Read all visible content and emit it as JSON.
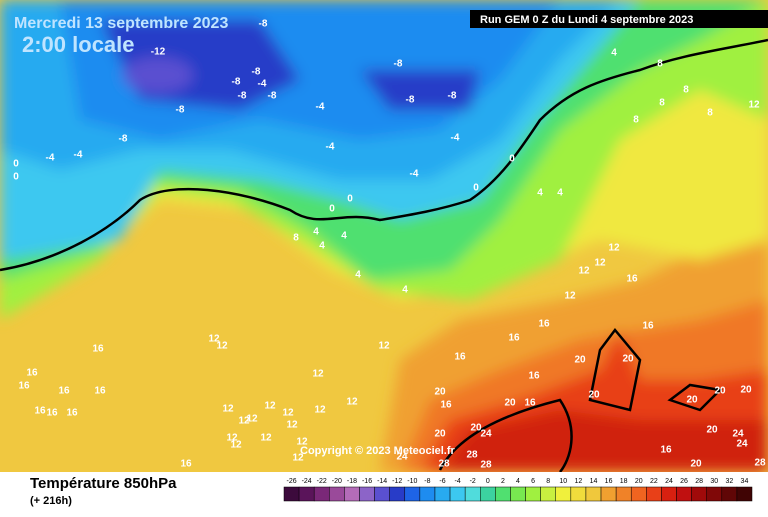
{
  "header": {
    "date": "Mercredi 13 septembre 2023",
    "time": "2:00 locale",
    "run": "Run GEM 0 Z du Lundi 4 septembre 2023"
  },
  "copyright": "Copyright © 2023 Meteociel.fr",
  "footer": {
    "title": "Température 850hPa",
    "lead": "(+ 216h)"
  },
  "map_labels": [
    -8,
    -12,
    -8,
    4,
    8,
    -8,
    -8,
    -4,
    -8,
    -8,
    -8,
    -8,
    -8,
    -4,
    -8,
    -4,
    -4,
    0,
    0,
    -4,
    -4,
    -4,
    0,
    0,
    0,
    0,
    8,
    4,
    4,
    4,
    4,
    4,
    4,
    4,
    8,
    8,
    8,
    8,
    12,
    12,
    12,
    12,
    12,
    16,
    16,
    16,
    16,
    16,
    12,
    12,
    12,
    16,
    16,
    16,
    16,
    16,
    12,
    12,
    12,
    12,
    12,
    12,
    12,
    12,
    12,
    12,
    12,
    12,
    12,
    12,
    16,
    16,
    16,
    16,
    20,
    20,
    16,
    20,
    16,
    20,
    16,
    20,
    20,
    20,
    20,
    20,
    24,
    20,
    28,
    28,
    28,
    24,
    16,
    20,
    24,
    24,
    20,
    28
  ],
  "legend": {
    "values": [
      -26,
      -24,
      -22,
      -20,
      -18,
      -16,
      -14,
      -12,
      -10,
      -8,
      -6,
      -4,
      -2,
      0,
      2,
      4,
      6,
      8,
      10,
      12,
      14,
      16,
      18,
      20,
      22,
      24,
      26,
      28,
      30,
      32,
      34
    ],
    "colors": [
      "#3c0a3c",
      "#5a145a",
      "#7a2878",
      "#9a4a9a",
      "#b46cb8",
      "#8c64c8",
      "#5a50d0",
      "#283cc8",
      "#1e64e6",
      "#1e8cf0",
      "#28aaf0",
      "#3cc8f0",
      "#50dcdc",
      "#3cd2a0",
      "#50e070",
      "#78e850",
      "#a0f040",
      "#c8f040",
      "#f0f03c",
      "#f0dc3c",
      "#f0c83c",
      "#f0a030",
      "#f08228",
      "#f06420",
      "#e84018",
      "#d82010",
      "#c01010",
      "#a00a0a",
      "#800808",
      "#600606",
      "#400404"
    ]
  }
}
